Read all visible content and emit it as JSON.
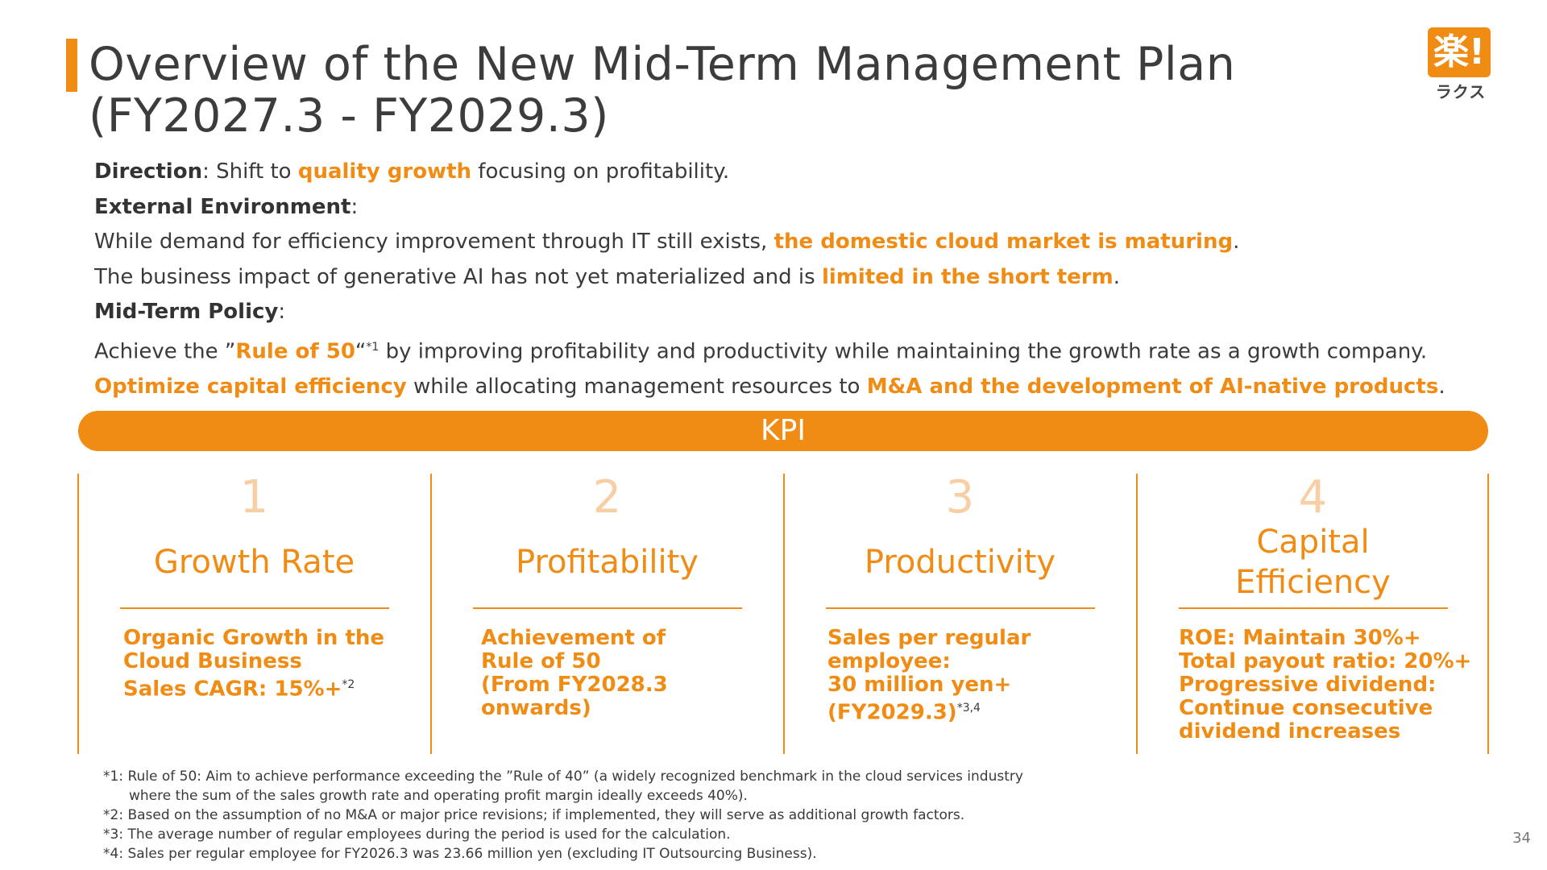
{
  "title": {
    "line1": "Overview of the New Mid-Term Management Plan",
    "line2": "(FY2027.3 - FY2029.3)"
  },
  "logo": {
    "mark": "楽!",
    "text": "ラクス"
  },
  "body": {
    "direction_label": "Direction",
    "direction_pre": ": Shift to ",
    "direction_hl": "quality growth",
    "direction_post": " focusing on profitability.",
    "external_label": "External Environment",
    "external_colon": ":",
    "env1_pre": "While demand for efficiency improvement through IT still exists, ",
    "env1_hl": "the domestic cloud market is maturing",
    "env1_post": ".",
    "env2_pre": "The business impact of generative AI has not yet materialized and is ",
    "env2_hl": "limited in the short term",
    "env2_post": ".",
    "policy_label": "Mid-Term Policy",
    "policy_colon": ":",
    "pol1_pre": "Achieve the ”",
    "pol1_hl": "Rule of 50",
    "pol1_quote": "“",
    "pol1_sup": "*1",
    "pol1_post": " by improving profitability and productivity while maintaining the growth rate as a growth company.",
    "pol2_hl1": "Optimize capital efficiency",
    "pol2_mid": " while allocating management resources to ",
    "pol2_hl2": "M&A and the development of AI-native products",
    "pol2_post": "."
  },
  "kpi_label": "KPI",
  "kpis": [
    {
      "num": "1",
      "head": "Growth Rate",
      "desc1": "Organic Growth in the",
      "desc2": "Cloud Business",
      "desc3": "Sales CAGR: 15%+",
      "note": "*2"
    },
    {
      "num": "2",
      "head": "Profitability",
      "desc1": "Achievement of",
      "desc2": "Rule of 50",
      "desc3": "(From FY2028.3",
      "desc4": "onwards)"
    },
    {
      "num": "3",
      "head": "Productivity",
      "desc1": "Sales per regular",
      "desc2": "employee:",
      "desc3": "30 million yen+",
      "desc4": "(FY2029.3)",
      "note": "*3,4"
    },
    {
      "num": "4",
      "head1": "Capital",
      "head2": "Efficiency",
      "desc1": "ROE: Maintain 30%+",
      "desc2": "Total payout ratio: 20%+",
      "desc3": "Progressive dividend:",
      "desc4": "Continue consecutive",
      "desc5": "dividend increases"
    }
  ],
  "notes": {
    "n1a": "*1: Rule of 50: Aim to achieve performance exceeding the ”Rule of 40” (a widely recognized benchmark in the cloud services industry",
    "n1b": "where the sum of the sales growth rate and operating profit margin ideally exceeds 40%).",
    "n2": "*2: Based on the assumption of no M&A or major price revisions; if implemented, they will serve as additional growth factors.",
    "n3": "*3: The average number of regular employees during the period is used for the calculation.",
    "n4": "*4: Sales per regular employee for FY2026.3 was 23.66 million yen (excluding IT Outsourcing Business)."
  },
  "page_number": "34",
  "colors": {
    "accent": "#f08c14",
    "number_light": "#f8cfa4",
    "text": "#3a3a3a"
  }
}
